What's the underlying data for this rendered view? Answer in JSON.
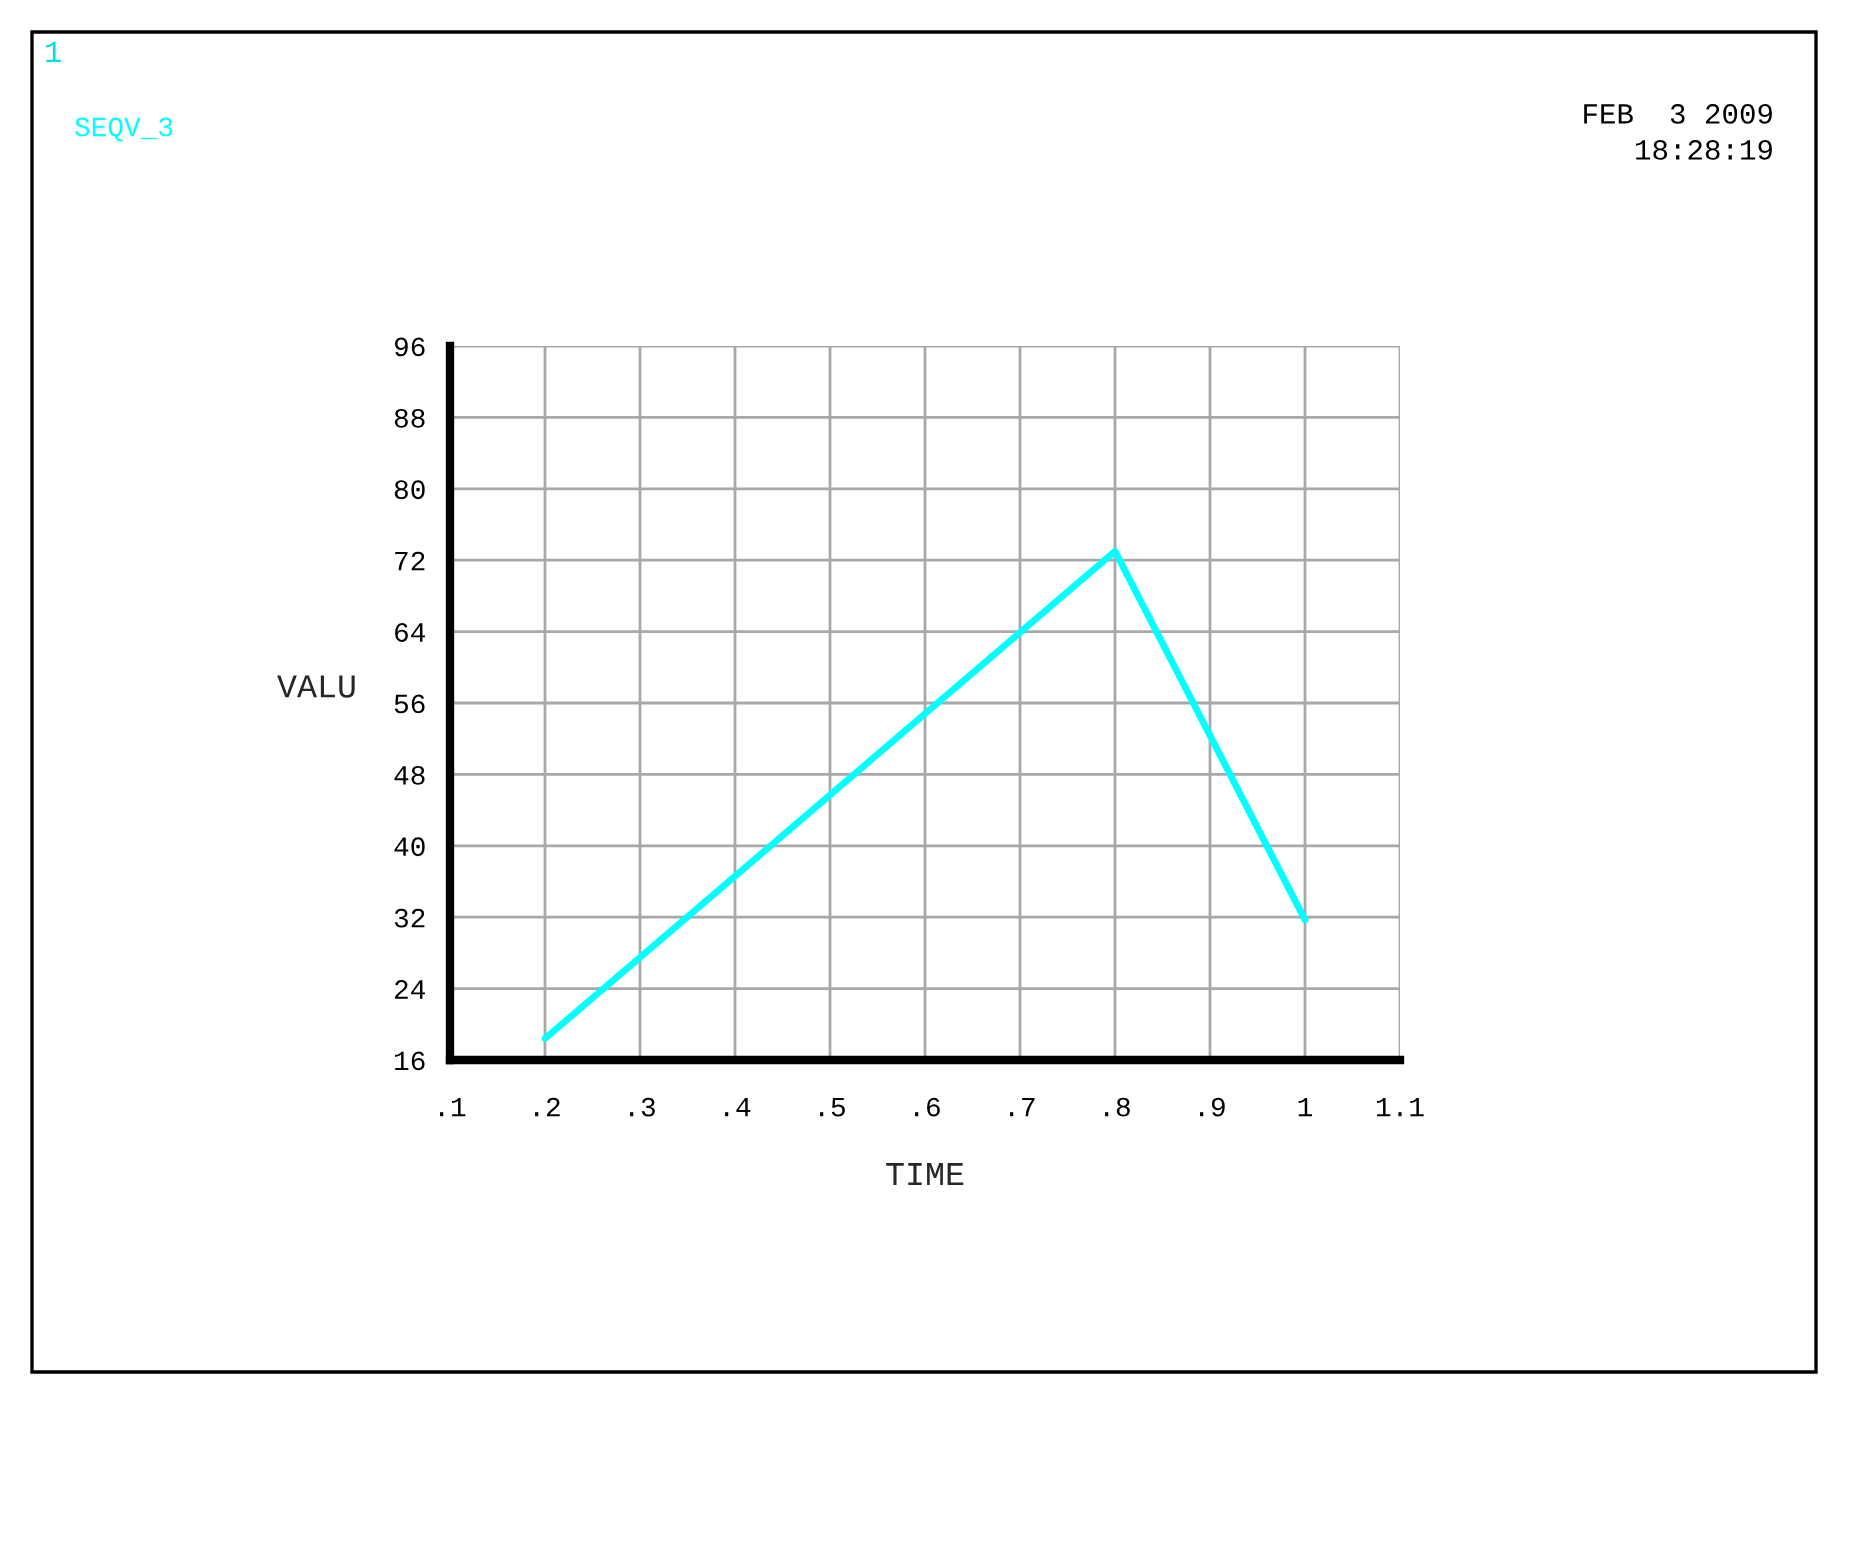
{
  "chart_data": {
    "type": "line",
    "xlabel": "TIME",
    "ylabel": "VALU",
    "x": [
      0.2,
      0.8,
      1.0
    ],
    "series": [
      {
        "name": "SEQV_3",
        "color": "#00ffff",
        "values": [
          18.4,
          73,
          31.7
        ]
      }
    ],
    "xlim": [
      0.1,
      1.1
    ],
    "xticks": [
      {
        "value": 0.1,
        "label": ".1"
      },
      {
        "value": 0.2,
        "label": ".2"
      },
      {
        "value": 0.3,
        "label": ".3"
      },
      {
        "value": 0.4,
        "label": ".4"
      },
      {
        "value": 0.5,
        "label": ".5"
      },
      {
        "value": 0.6,
        "label": ".6"
      },
      {
        "value": 0.7,
        "label": ".7"
      },
      {
        "value": 0.8,
        "label": ".8"
      },
      {
        "value": 0.9,
        "label": ".9"
      },
      1,
      1.1
    ],
    "ylim": [
      16,
      96
    ],
    "yticks": [
      16,
      24,
      32,
      40,
      48,
      56,
      64,
      72,
      80,
      88,
      96
    ],
    "grid": true,
    "legend": "top left",
    "annotations": [
      "1",
      "FEB  3 2009",
      "18:28:19"
    ]
  }
}
